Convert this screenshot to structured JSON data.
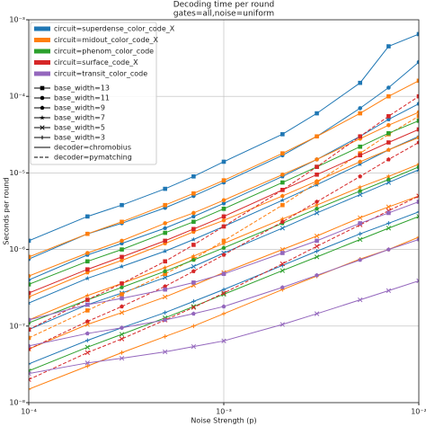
{
  "chart_data": {
    "type": "line",
    "title": "Decoding time per round",
    "subtitle": "gates=all,noise=uniform",
    "x_label": "Noise Strength (p)",
    "y_label": "Seconds per round",
    "log_x": true,
    "log_y": true,
    "grid": true,
    "legend_position": "upper left",
    "x": [
      0.0001,
      0.0002,
      0.0003,
      0.0005,
      0.0007,
      0.001,
      0.002,
      0.003,
      0.005,
      0.007,
      0.01
    ],
    "xlim": [
      0.0001,
      0.01
    ],
    "xticks": [
      {
        "value": 0.0001,
        "label": "10⁻⁴"
      },
      {
        "value": 0.001,
        "label": "10⁻³"
      },
      {
        "value": 0.01,
        "label": "10⁻²"
      }
    ],
    "ylim": [
      1e-08,
      0.001
    ],
    "yticks": [
      {
        "value": 1e-08,
        "label": "10⁻⁸"
      },
      {
        "value": 1e-07,
        "label": "10⁻⁷"
      },
      {
        "value": 1e-06,
        "label": "10⁻⁶"
      },
      {
        "value": 1e-05,
        "label": "10⁻⁵"
      },
      {
        "value": 0.0001,
        "label": "10⁻⁴"
      },
      {
        "value": 0.001,
        "label": "10⁻³"
      }
    ],
    "legend": {
      "circuits": [
        {
          "name": "circuit=superdense_color_code_X",
          "color": "#1f77b4"
        },
        {
          "name": "circuit=midout_color_code_X",
          "color": "#ff7f0e"
        },
        {
          "name": "circuit=phenom_color_code",
          "color": "#2ca02c"
        },
        {
          "name": "circuit=surface_code_X",
          "color": "#d62728"
        },
        {
          "name": "circuit=transit_color_code",
          "color": "#9467bd"
        }
      ],
      "base_widths": [
        {
          "name": "base_width=13",
          "marker": "square"
        },
        {
          "name": "base_width=11",
          "marker": "circle"
        },
        {
          "name": "base_width=9",
          "marker": "pentagon"
        },
        {
          "name": "base_width=7",
          "marker": "star"
        },
        {
          "name": "base_width=5",
          "marker": "x"
        },
        {
          "name": "base_width=3",
          "marker": "plus"
        }
      ],
      "decoders": [
        {
          "name": "decoder=chromobius",
          "dash": "solid"
        },
        {
          "name": "decoder=pymatching",
          "dash": "dashed"
        }
      ]
    },
    "series": [
      {
        "circuit": "circuit=superdense_color_code_X",
        "base_width": "base_width=13",
        "decoder": "decoder=chromobius",
        "values": [
          1.3e-06,
          2.7e-06,
          3.8e-06,
          6.2e-06,
          9e-06,
          1.4e-05,
          3.2e-05,
          6e-05,
          0.00015,
          0.00045,
          0.00065
        ]
      },
      {
        "circuit": "circuit=superdense_color_code_X",
        "base_width": "base_width=11",
        "decoder": "decoder=chromobius",
        "values": [
          7.5e-07,
          1.6e-06,
          2.2e-06,
          3.5e-06,
          5e-06,
          7.5e-06,
          1.7e-05,
          3e-05,
          7e-05,
          0.00013,
          0.00028
        ]
      },
      {
        "circuit": "circuit=superdense_color_code_X",
        "base_width": "base_width=9",
        "decoder": "decoder=chromobius",
        "values": [
          4e-07,
          8.5e-07,
          1.2e-06,
          1.9e-06,
          2.7e-06,
          4e-06,
          9e-06,
          1.5e-05,
          3e-05,
          5e-05,
          8e-05
        ]
      },
      {
        "circuit": "circuit=superdense_color_code_X",
        "base_width": "base_width=7",
        "decoder": "decoder=chromobius",
        "values": [
          2e-07,
          4.2e-07,
          6e-07,
          9.5e-07,
          1.35e-06,
          2e-06,
          4.4e-06,
          7e-06,
          1.3e-05,
          2e-05,
          3e-05
        ]
      },
      {
        "circuit": "circuit=superdense_color_code_X",
        "base_width": "base_width=5",
        "decoder": "decoder=chromobius",
        "values": [
          9e-08,
          1.9e-07,
          2.7e-07,
          4.3e-07,
          6e-07,
          9e-07,
          1.9e-06,
          3e-06,
          5.2e-06,
          7.5e-06,
          1.1e-05
        ]
      },
      {
        "circuit": "circuit=superdense_color_code_X",
        "base_width": "base_width=3",
        "decoder": "decoder=chromobius",
        "values": [
          3.2e-08,
          6.5e-08,
          9.5e-08,
          1.5e-07,
          2.1e-07,
          3e-07,
          6.2e-07,
          9.5e-07,
          1.6e-06,
          2.2e-06,
          3.1e-06
        ]
      },
      {
        "circuit": "circuit=midout_color_code_X",
        "base_width": "base_width=13",
        "decoder": "decoder=chromobius",
        "values": [
          8e-07,
          1.6e-06,
          2.3e-06,
          3.8e-06,
          5.4e-06,
          8e-06,
          1.8e-05,
          3e-05,
          6e-05,
          0.0001,
          0.00016
        ]
      },
      {
        "circuit": "circuit=midout_color_code_X",
        "base_width": "base_width=11",
        "decoder": "decoder=chromobius",
        "values": [
          4.5e-07,
          9e-07,
          1.3e-06,
          2.2e-06,
          3e-06,
          4.4e-06,
          9.5e-06,
          1.5e-05,
          2.8e-05,
          4.2e-05,
          6.2e-05
        ]
      },
      {
        "circuit": "circuit=midout_color_code_X",
        "base_width": "base_width=9",
        "decoder": "decoder=chromobius",
        "values": [
          2.4e-07,
          5e-07,
          7.2e-07,
          1.2e-06,
          1.7e-06,
          2.4e-06,
          5e-06,
          7.8e-06,
          1.4e-05,
          2e-05,
          2.9e-05
        ]
      },
      {
        "circuit": "circuit=midout_color_code_X",
        "base_width": "base_width=7",
        "decoder": "decoder=chromobius",
        "values": [
          1.2e-07,
          2.5e-07,
          3.6e-07,
          5.8e-07,
          8.2e-07,
          1.2e-06,
          2.5e-06,
          3.8e-06,
          6.5e-06,
          9e-06,
          1.3e-05
        ]
      },
      {
        "circuit": "circuit=midout_color_code_X",
        "base_width": "base_width=5",
        "decoder": "decoder=chromobius",
        "values": [
          5e-08,
          1.05e-07,
          1.5e-07,
          2.4e-07,
          3.4e-07,
          5e-07,
          1e-06,
          1.5e-06,
          2.6e-06,
          3.6e-06,
          5e-06
        ]
      },
      {
        "circuit": "circuit=midout_color_code_X",
        "base_width": "base_width=3",
        "decoder": "decoder=chromobius",
        "values": [
          1.5e-08,
          3e-08,
          4.5e-08,
          7.3e-08,
          1e-07,
          1.45e-07,
          3e-07,
          4.5e-07,
          7.5e-07,
          1e-06,
          1.45e-06
        ]
      },
      {
        "circuit": "circuit=midout_color_code_X",
        "base_width": "base_width=13",
        "decoder": "decoder=pymatching",
        "values": [
          7e-08,
          1.6e-07,
          2.6e-07,
          4.8e-07,
          7.5e-07,
          1.3e-06,
          3.8e-06,
          7.5e-06,
          1.8e-05,
          3.2e-05,
          5.5e-05
        ]
      },
      {
        "circuit": "circuit=phenom_color_code",
        "base_width": "base_width=13",
        "decoder": "decoder=chromobius",
        "values": [
          3.5e-07,
          7e-07,
          1e-06,
          1.65e-06,
          2.3e-06,
          3.4e-06,
          7.5e-06,
          1.2e-05,
          2.2e-05,
          3.3e-05,
          4.8e-05
        ]
      },
      {
        "circuit": "circuit=phenom_color_code",
        "base_width": "base_width=9",
        "decoder": "decoder=chromobius",
        "values": [
          1.1e-07,
          2.2e-07,
          3.2e-07,
          5.2e-07,
          7.3e-07,
          1.05e-06,
          2.2e-06,
          3.4e-06,
          5.8e-06,
          8.2e-06,
          1.2e-05
        ]
      },
      {
        "circuit": "circuit=phenom_color_code",
        "base_width": "base_width=5",
        "decoder": "decoder=chromobius",
        "values": [
          2.6e-08,
          5.3e-08,
          7.8e-08,
          1.28e-07,
          1.8e-07,
          2.6e-07,
          5.3e-07,
          8e-07,
          1.35e-06,
          1.9e-06,
          2.7e-06
        ]
      },
      {
        "circuit": "circuit=surface_code_X",
        "base_width": "base_width=13",
        "decoder": "decoder=chromobius",
        "values": [
          2.7e-07,
          5.5e-07,
          8e-07,
          1.3e-06,
          1.85e-06,
          2.7e-06,
          6e-06,
          9.5e-06,
          1.7e-05,
          2.5e-05,
          3.7e-05
        ]
      },
      {
        "circuit": "circuit=surface_code_X",
        "base_width": "base_width=13",
        "decoder": "decoder=pymatching",
        "values": [
          9e-08,
          2.2e-07,
          3.6e-07,
          7e-07,
          1.15e-06,
          2e-06,
          6e-06,
          1.2e-05,
          3e-05,
          5.5e-05,
          0.0001
        ]
      },
      {
        "circuit": "circuit=surface_code_X",
        "base_width": "base_width=9",
        "decoder": "decoder=pymatching",
        "values": [
          5e-08,
          1.15e-07,
          1.8e-07,
          3.3e-07,
          5.2e-07,
          8.5e-07,
          2.3e-06,
          4.2e-06,
          9e-06,
          1.5e-05,
          2.5e-05
        ]
      },
      {
        "circuit": "circuit=surface_code_X",
        "base_width": "base_width=5",
        "decoder": "decoder=pymatching",
        "values": [
          2e-08,
          4.5e-08,
          6.8e-08,
          1.2e-07,
          1.75e-07,
          2.7e-07,
          6.5e-07,
          1.1e-06,
          2.1e-06,
          3.2e-06,
          5e-06
        ]
      },
      {
        "circuit": "circuit=transit_color_code",
        "base_width": "base_width=13",
        "decoder": "decoder=chromobius",
        "values": [
          1.2e-07,
          1.9e-07,
          2.3e-07,
          3e-07,
          3.7e-07,
          4.8e-07,
          9e-07,
          1.3e-06,
          2.2e-06,
          3e-06,
          4.2e-06
        ]
      },
      {
        "circuit": "circuit=transit_color_code",
        "base_width": "base_width=9",
        "decoder": "decoder=chromobius",
        "values": [
          5.5e-08,
          8e-08,
          9.5e-08,
          1.2e-07,
          1.45e-07,
          1.8e-07,
          3.2e-07,
          4.6e-07,
          7.3e-07,
          1e-06,
          1.35e-06
        ]
      },
      {
        "circuit": "circuit=transit_color_code",
        "base_width": "base_width=5",
        "decoder": "decoder=chromobius",
        "values": [
          2.4e-08,
          3.3e-08,
          3.8e-08,
          4.6e-08,
          5.4e-08,
          6.4e-08,
          1.05e-07,
          1.45e-07,
          2.2e-07,
          2.9e-07,
          3.9e-07
        ]
      }
    ]
  }
}
